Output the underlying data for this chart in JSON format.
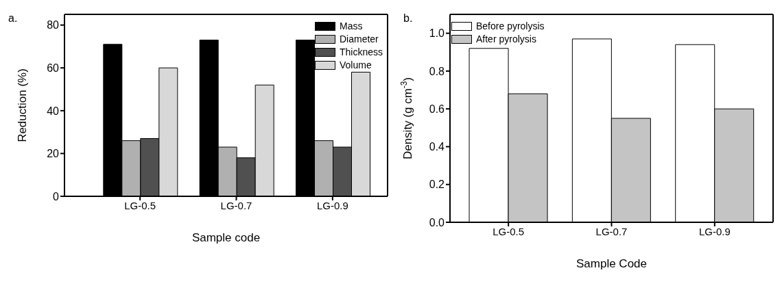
{
  "chart_data": [
    {
      "type": "bar",
      "annotations": [
        "a."
      ],
      "xlabel": "Sample code",
      "ylabel": "Reduction (%)",
      "categories": [
        "LG-0.5",
        "LG-0.7",
        "LG-0.9"
      ],
      "ylim": [
        0,
        85
      ],
      "yticks": [
        0,
        20,
        40,
        60,
        80
      ],
      "legend": "top right",
      "series": [
        {
          "name": "Mass",
          "color": "#000000",
          "values": [
            71,
            73,
            73
          ]
        },
        {
          "name": "Diameter",
          "color": "#b0b0b0",
          "values": [
            26,
            23,
            26
          ]
        },
        {
          "name": "Thickness",
          "color": "#505050",
          "values": [
            27,
            18,
            23
          ]
        },
        {
          "name": "Volume",
          "color": "#d8d8d8",
          "values": [
            60,
            52,
            58
          ]
        }
      ]
    },
    {
      "type": "bar",
      "annotations": [
        "b."
      ],
      "xlabel": "Sample Code",
      "ylabel": "Density (g cm$^{-3}$)",
      "categories": [
        "LG-0.5",
        "LG-0.7",
        "LG-0.9"
      ],
      "ylim": [
        0,
        1.1
      ],
      "yticks": [
        {
          "value": 0,
          "label": "0.0"
        },
        {
          "value": 0.2,
          "label": "0.2"
        },
        {
          "value": 0.4,
          "label": "0.4"
        },
        {
          "value": 0.6,
          "label": "0.6"
        },
        {
          "value": 0.8,
          "label": "0.8"
        },
        {
          "value": 1,
          "label": "1.0"
        }
      ],
      "legend": "top left",
      "series": [
        {
          "name": "Before pyrolysis",
          "color": "#ffffff",
          "values": [
            0.92,
            0.97,
            0.94
          ]
        },
        {
          "name": "After pyrolysis",
          "color": "#c4c4c4",
          "values": [
            0.68,
            0.55,
            0.6
          ]
        }
      ]
    }
  ]
}
